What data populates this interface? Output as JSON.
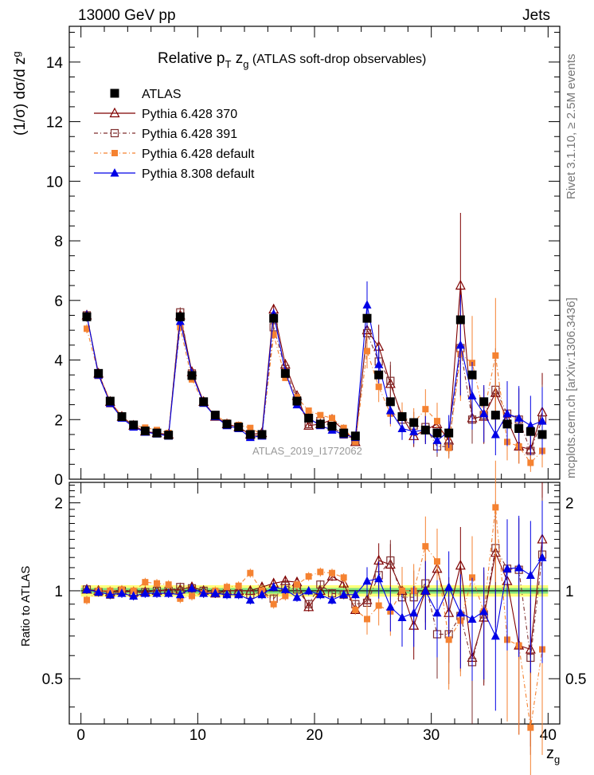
{
  "header": {
    "left": "13000 GeV pp",
    "right": "Jets",
    "side_top": "Rivet 3.1.10, ≥ 2.5M events",
    "side_bottom": "mcplots.cern.ch [arXiv:1306.3436]",
    "watermark": "ATLAS_2019_I1772062"
  },
  "chart_data": {
    "type": "scatter",
    "title": "Relative p_T z_g (ATLAS soft-drop observables)",
    "title_parts": {
      "main": "Relative p",
      "sub": "T",
      "mid": " z",
      "sub2": "g",
      "rest": " (ATLAS soft-drop observables)"
    },
    "ylabel": "(1/σ) dσ/d z_g",
    "ylabel_parts": {
      "main": "(1/σ) dσ/d z",
      "sub": "g"
    },
    "xlabel": "z_g",
    "xlabel_parts": {
      "main": "z",
      "sub": "g"
    },
    "ratio_ylabel": "Ratio to ATLAS",
    "x": [
      0.5,
      1.5,
      2.5,
      3.5,
      4.5,
      5.5,
      6.5,
      7.5,
      8.5,
      9.5,
      10.5,
      11.5,
      12.5,
      13.5,
      14.5,
      15.5,
      16.5,
      17.5,
      18.5,
      19.5,
      20.5,
      21.5,
      22.5,
      23.5,
      24.5,
      25.5,
      26.5,
      27.5,
      28.5,
      29.5,
      30.5,
      31.5,
      32.5,
      33.5,
      34.5,
      35.5,
      36.5,
      37.5,
      38.5,
      39.5
    ],
    "xlim": [
      -1,
      41
    ],
    "ylim": [
      0,
      15.2
    ],
    "ratio_ylim": [
      0.35,
      2.35
    ],
    "x_ticks": [
      "0",
      "10",
      "20",
      "30",
      "40"
    ],
    "y_ticks": [
      "0",
      "2",
      "4",
      "6",
      "8",
      "10",
      "12",
      "14"
    ],
    "ratio_ticks": [
      "0.5",
      "1",
      "2"
    ],
    "grid": false,
    "legend_position": "top-left",
    "series": [
      {
        "name": "ATLAS",
        "color": "#000000",
        "marker": "filled-square",
        "values": [
          5.45,
          3.55,
          2.62,
          2.1,
          1.82,
          1.62,
          1.55,
          1.48,
          5.45,
          3.48,
          2.6,
          2.15,
          1.85,
          1.75,
          1.5,
          1.5,
          5.4,
          3.55,
          2.62,
          2.05,
          1.85,
          1.78,
          1.55,
          1.45,
          5.4,
          3.5,
          2.6,
          2.1,
          1.9,
          1.65,
          1.55,
          1.55,
          5.35,
          3.5,
          2.6,
          2.15,
          1.85,
          1.7,
          1.6,
          1.5
        ]
      },
      {
        "name": "Pythia 6.428 370",
        "color": "#7f0000",
        "marker": "open-triangle",
        "dash": "",
        "values": [
          5.5,
          3.55,
          2.6,
          2.1,
          1.8,
          1.6,
          1.55,
          1.5,
          5.5,
          3.6,
          2.6,
          2.1,
          1.85,
          1.75,
          1.5,
          1.55,
          5.7,
          3.85,
          2.8,
          1.8,
          1.85,
          2.0,
          1.65,
          1.25,
          5.0,
          4.45,
          3.2,
          2.1,
          1.45,
          1.65,
          1.85,
          1.3,
          6.5,
          2.05,
          2.1,
          2.9,
          2.0,
          1.1,
          1.0,
          2.25
        ]
      },
      {
        "name": "Pythia 6.428 391",
        "color": "#7f2f2f",
        "marker": "open-square",
        "dash": "5,3,1,3",
        "values": [
          5.5,
          3.5,
          2.55,
          2.1,
          1.78,
          1.6,
          1.55,
          1.48,
          5.6,
          3.55,
          2.6,
          2.1,
          1.82,
          1.72,
          1.45,
          1.48,
          5.1,
          3.7,
          2.65,
          1.85,
          1.95,
          1.75,
          1.5,
          1.3,
          4.9,
          3.95,
          3.3,
          2.0,
          1.8,
          1.75,
          1.1,
          1.1,
          4.4,
          2.0,
          2.15,
          3.0,
          2.2,
          2.0,
          0.95,
          2.0
        ]
      },
      {
        "name": "Pythia 6.428 default",
        "color": "#f58231",
        "marker": "filled-square-small",
        "dash": "5,3,1,3",
        "values": [
          5.05,
          3.55,
          2.62,
          2.12,
          1.82,
          1.73,
          1.65,
          1.55,
          5.1,
          3.35,
          2.55,
          2.15,
          1.9,
          1.82,
          1.72,
          1.5,
          4.85,
          3.4,
          2.75,
          2.3,
          2.15,
          2.05,
          1.72,
          1.25,
          4.3,
          3.1,
          2.2,
          2.1,
          1.9,
          2.35,
          1.95,
          1.05,
          4.2,
          3.9,
          2.2,
          4.15,
          1.25,
          1.1,
          0.55,
          0.95
        ]
      },
      {
        "name": "Pythia 8.308 default",
        "color": "#0000e6",
        "marker": "filled-triangle",
        "dash": "",
        "values": [
          5.5,
          3.5,
          2.55,
          2.05,
          1.75,
          1.58,
          1.52,
          1.45,
          5.3,
          3.55,
          2.55,
          2.1,
          1.8,
          1.7,
          1.4,
          1.45,
          5.55,
          3.6,
          2.5,
          2.05,
          1.8,
          1.65,
          1.5,
          1.4,
          5.85,
          3.85,
          2.3,
          1.7,
          1.6,
          1.65,
          1.3,
          1.6,
          4.5,
          2.8,
          2.2,
          1.5,
          2.2,
          2.05,
          1.8,
          1.95
        ]
      }
    ],
    "ratio_series": [
      {
        "name": "Pythia 6.428 370",
        "values": [
          1.01,
          1.0,
          0.99,
          1.0,
          0.99,
          0.99,
          1.0,
          1.01,
          1.01,
          1.03,
          1.0,
          0.98,
          1.0,
          1.0,
          1.0,
          1.03,
          1.06,
          1.08,
          1.07,
          0.88,
          1.0,
          1.12,
          1.06,
          0.86,
          0.93,
          1.27,
          1.23,
          1.0,
          0.76,
          1.0,
          1.19,
          0.84,
          1.22,
          0.59,
          0.81,
          1.35,
          1.08,
          0.65,
          0.63,
          1.5
        ]
      },
      {
        "name": "Pythia 6.428 391",
        "values": [
          1.01,
          0.99,
          0.97,
          1.0,
          0.98,
          0.99,
          1.0,
          1.0,
          1.03,
          1.02,
          1.0,
          0.98,
          0.98,
          0.98,
          0.97,
          0.99,
          0.94,
          1.04,
          1.01,
          0.9,
          1.05,
          0.98,
          0.97,
          0.9,
          0.91,
          1.13,
          1.27,
          0.95,
          0.95,
          1.06,
          0.71,
          0.71,
          0.82,
          0.57,
          0.83,
          1.4,
          1.19,
          1.18,
          0.59,
          1.33
        ]
      },
      {
        "name": "Pythia 6.428 default",
        "values": [
          0.93,
          1.0,
          1.0,
          1.01,
          1.0,
          1.07,
          1.06,
          1.05,
          0.94,
          0.96,
          0.98,
          1.0,
          1.03,
          1.04,
          1.15,
          1.0,
          0.9,
          0.96,
          1.05,
          1.12,
          1.16,
          1.15,
          1.11,
          0.86,
          0.8,
          0.89,
          0.85,
          1.0,
          1.0,
          1.42,
          1.26,
          0.68,
          0.79,
          1.11,
          0.85,
          1.93,
          0.68,
          0.65,
          0.34,
          0.63
        ]
      },
      {
        "name": "Pythia 8.308 default",
        "values": [
          1.01,
          0.99,
          0.97,
          0.98,
          0.96,
          0.98,
          0.98,
          0.98,
          0.97,
          1.02,
          0.98,
          0.98,
          0.97,
          0.97,
          0.93,
          0.97,
          1.03,
          1.01,
          0.95,
          1.0,
          0.97,
          0.93,
          0.97,
          0.97,
          1.08,
          1.1,
          0.88,
          0.81,
          0.84,
          1.0,
          0.84,
          1.03,
          0.84,
          0.8,
          0.85,
          0.7,
          1.19,
          1.2,
          1.13,
          1.3
        ]
      }
    ]
  }
}
